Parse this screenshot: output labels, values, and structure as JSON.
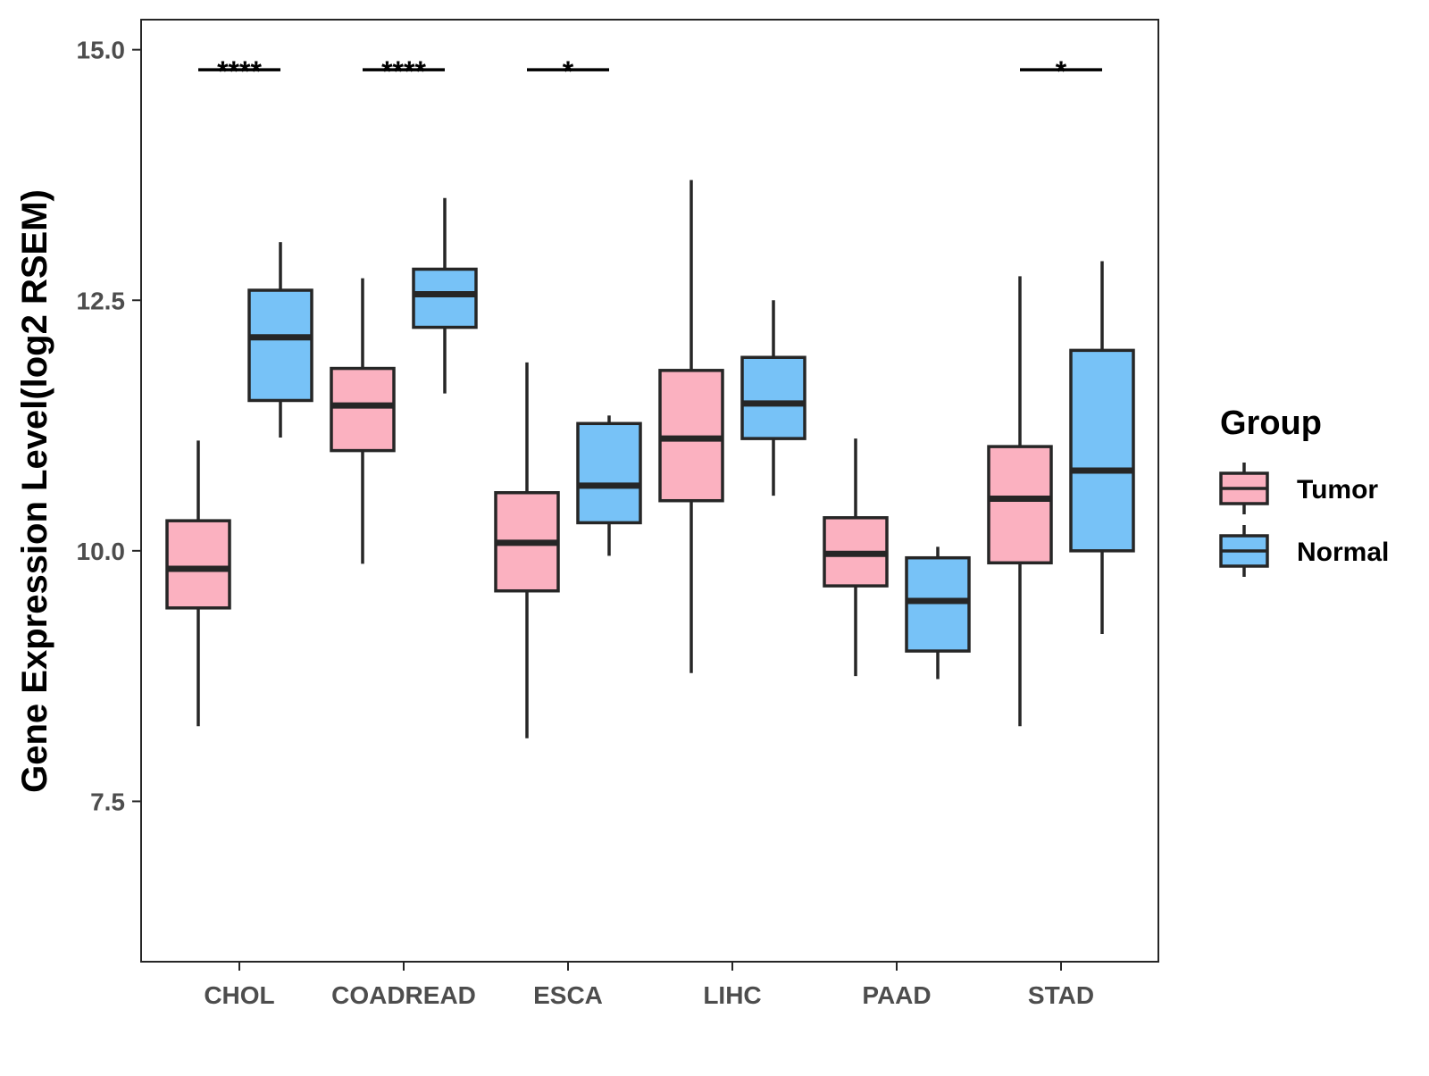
{
  "chart_data": {
    "type": "boxplot",
    "title": "",
    "xlabel": "",
    "ylabel": "Gene Expression Level(log2 RSEM)",
    "ylim": [
      5.9,
      15.3
    ],
    "yticks": [
      7.5,
      10.0,
      12.5,
      15.0
    ],
    "ytick_labels": [
      "7.5",
      "10.0",
      "12.5",
      "15.0"
    ],
    "grid": false,
    "legend_position": "right",
    "legend": {
      "title": "Group",
      "entries": [
        "Tumor",
        "Normal"
      ]
    },
    "categories": [
      "CHOL",
      "COADREAD",
      "ESCA",
      "LIHC",
      "PAAD",
      "STAD"
    ],
    "colors": {
      "Tumor": "#FBB1C0",
      "Normal": "#77C2F7",
      "outline": "#262626"
    },
    "series": [
      {
        "name": "Tumor",
        "boxes": [
          {
            "category": "CHOL",
            "min": 8.25,
            "q1": 9.43,
            "median": 9.82,
            "q3": 10.3,
            "max": 11.1
          },
          {
            "category": "COADREAD",
            "min": 9.87,
            "q1": 11.0,
            "median": 11.45,
            "q3": 11.82,
            "max": 12.72
          },
          {
            "category": "ESCA",
            "min": 8.13,
            "q1": 9.6,
            "median": 10.08,
            "q3": 10.58,
            "max": 11.88
          },
          {
            "category": "LIHC",
            "min": 8.78,
            "q1": 10.5,
            "median": 11.12,
            "q3": 11.8,
            "max": 13.7
          },
          {
            "category": "PAAD",
            "min": 8.75,
            "q1": 9.65,
            "median": 9.97,
            "q3": 10.33,
            "max": 11.12
          },
          {
            "category": "STAD",
            "min": 8.25,
            "q1": 9.88,
            "median": 10.52,
            "q3": 11.04,
            "max": 12.74
          }
        ]
      },
      {
        "name": "Normal",
        "boxes": [
          {
            "category": "CHOL",
            "min": 11.13,
            "q1": 11.5,
            "median": 12.13,
            "q3": 12.6,
            "max": 13.08
          },
          {
            "category": "COADREAD",
            "min": 11.57,
            "q1": 12.23,
            "median": 12.56,
            "q3": 12.81,
            "max": 13.52
          },
          {
            "category": "ESCA",
            "min": 9.95,
            "q1": 10.28,
            "median": 10.65,
            "q3": 11.27,
            "max": 11.35
          },
          {
            "category": "LIHC",
            "min": 10.55,
            "q1": 11.12,
            "median": 11.47,
            "q3": 11.93,
            "max": 12.5
          },
          {
            "category": "PAAD",
            "min": 8.72,
            "q1": 9.0,
            "median": 9.5,
            "q3": 9.93,
            "max": 10.04
          },
          {
            "category": "STAD",
            "min": 9.17,
            "q1": 10.0,
            "median": 10.8,
            "q3": 12.0,
            "max": 12.89
          }
        ]
      }
    ],
    "annotations": [
      {
        "category": "CHOL",
        "label": "****",
        "y": 14.8
      },
      {
        "category": "COADREAD",
        "label": "****",
        "y": 14.8
      },
      {
        "category": "ESCA",
        "label": "*",
        "y": 14.8
      },
      {
        "category": "STAD",
        "label": "*",
        "y": 14.8
      }
    ]
  }
}
